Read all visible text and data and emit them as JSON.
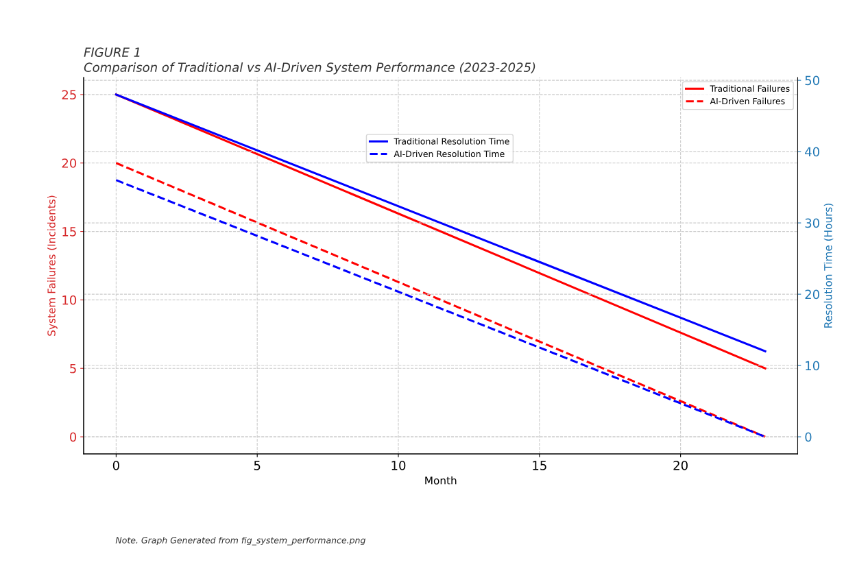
{
  "chart_data": {
    "type": "line",
    "title": "FIGURE 1",
    "subtitle": "Comparison of Traditional vs AI-Driven System Performance (2023-2025)",
    "xlabel": "Month",
    "ylabel": "System Failures (Incidents)",
    "y2label": "Resolution Time (Hours)",
    "x": [
      0,
      23
    ],
    "series": [
      {
        "name": "Traditional Failures",
        "color": "#ff0000",
        "values": [
          25,
          5
        ],
        "line_style": "solid"
      },
      {
        "name": "AI-Driven Failures",
        "color": "#ff0000",
        "values": [
          20,
          0
        ],
        "line_style": "dashed"
      },
      {
        "name": "Traditional Resolution Time",
        "color": "#0000ff",
        "values": [
          48,
          12
        ],
        "line_style": "solid",
        "axis": "y2"
      },
      {
        "name": "AI-Driven Resolution Time",
        "color": "#0000ff",
        "values": [
          36,
          0
        ],
        "line_style": "dashed",
        "axis": "y2"
      }
    ],
    "xlim": [
      -1.15,
      24.15
    ],
    "xticks": [
      0,
      5,
      10,
      15,
      20
    ],
    "ylim": [
      -1.25,
      26.25
    ],
    "yticks": [
      0,
      5,
      10,
      15,
      20,
      25
    ],
    "y2lim": [
      -2.4,
      50.4
    ],
    "y2ticks": [
      0,
      10,
      20,
      30,
      40,
      50
    ],
    "grid": true,
    "legend": "top right",
    "annotations": [
      "Note. Graph Generated from fig_system_performance.png"
    ]
  }
}
